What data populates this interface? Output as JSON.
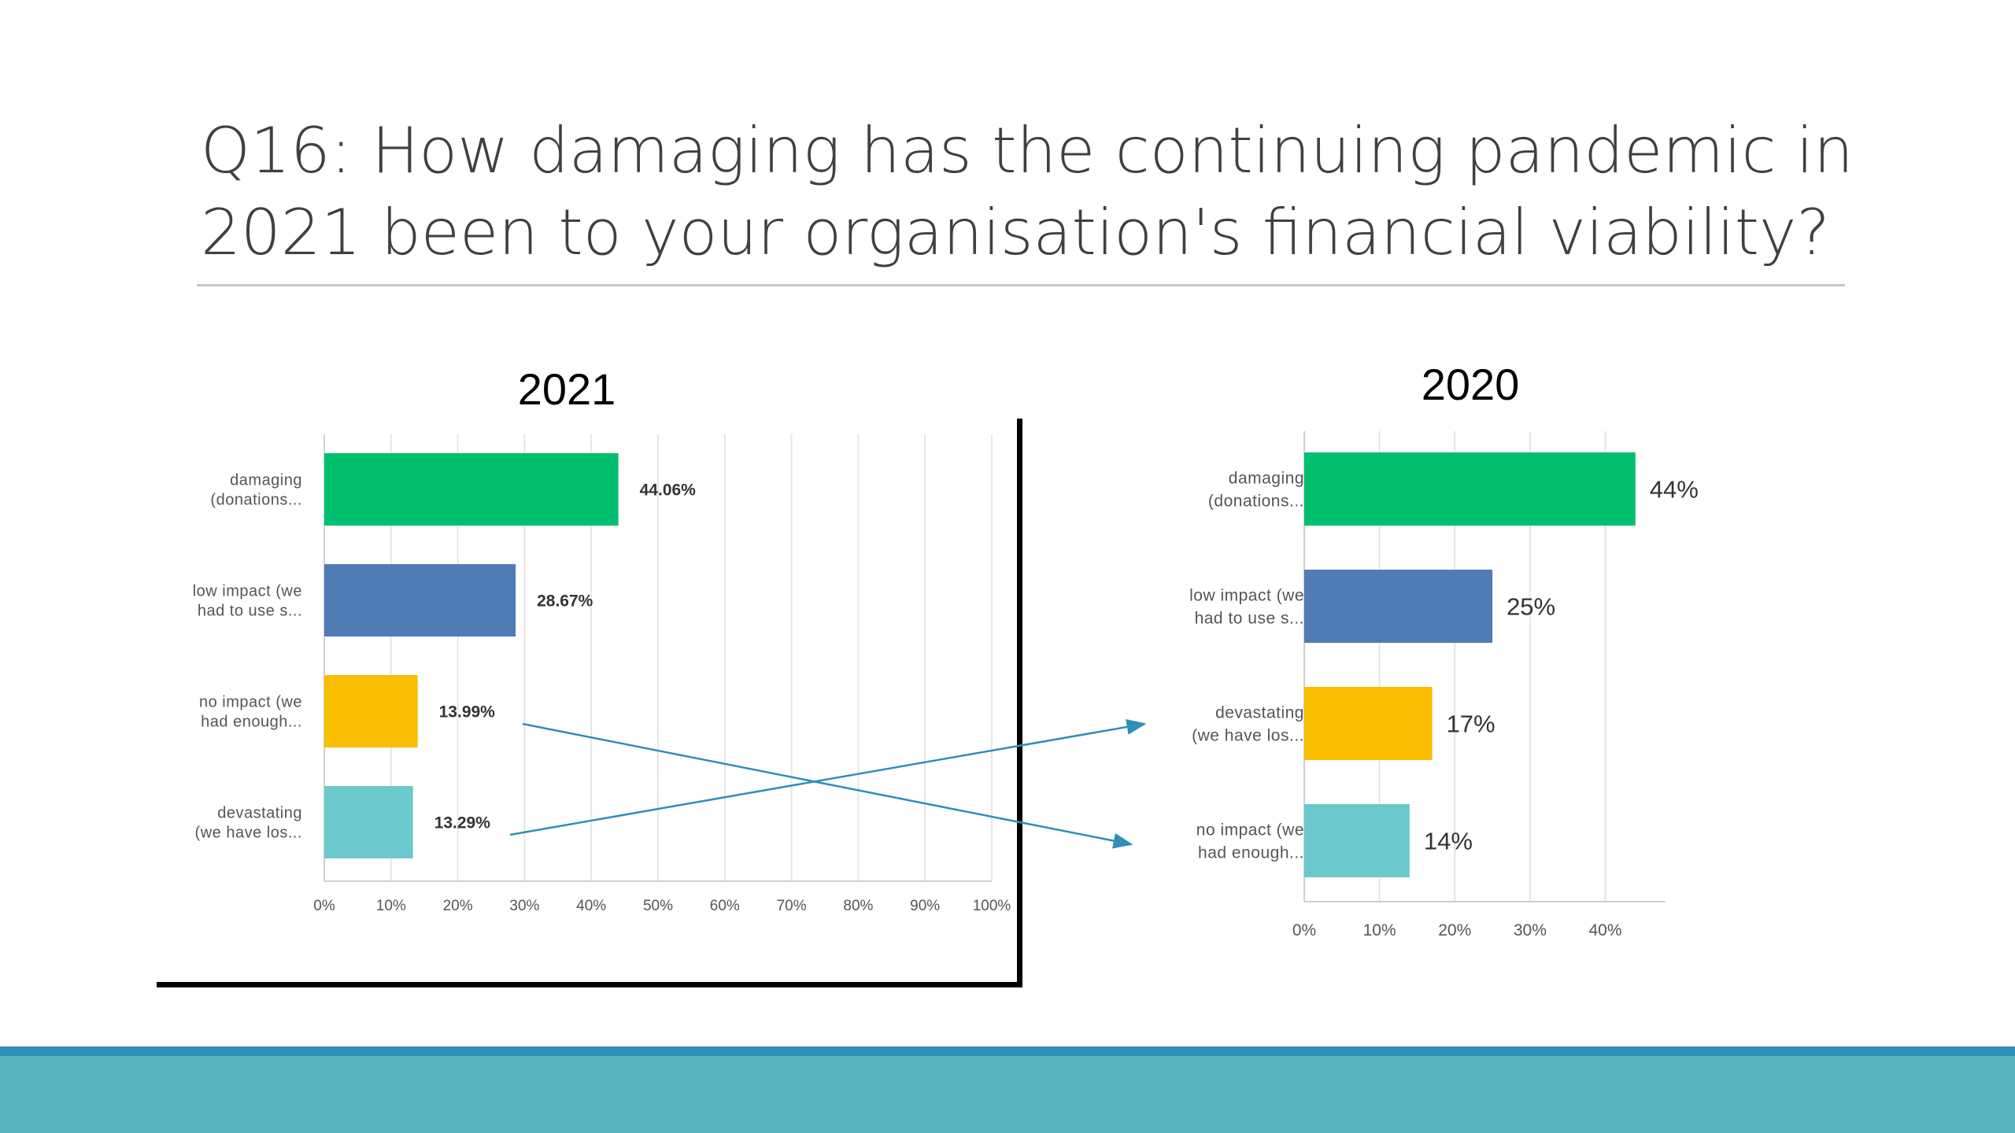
{
  "slide": {
    "title_line1": "Q16: How damaging has the continuing pandemic in",
    "title_line2": "2021 been to your organisation's financial viability?"
  },
  "colors": {
    "green": "#00bf6f",
    "blue": "#507cb6",
    "yellow": "#f9be00",
    "teal": "#6bc8cd",
    "arrow": "#2f8fb8",
    "footer": "#58b5c0"
  },
  "chart_data": [
    {
      "type": "bar",
      "orientation": "horizontal",
      "title": "2021",
      "categories": [
        [
          "damaging",
          "(donations..."
        ],
        [
          "low impact (we",
          "had to use s..."
        ],
        [
          "no impact (we",
          "had enough..."
        ],
        [
          "devastating",
          "(we have los..."
        ]
      ],
      "values": [
        44.06,
        28.67,
        13.99,
        13.29
      ],
      "data_labels": [
        "44.06%",
        "28.67%",
        "13.99%",
        "13.29%"
      ],
      "bar_colors": [
        "#00bf6f",
        "#507cb6",
        "#f9be00",
        "#6bc8cd"
      ],
      "xlim": [
        0,
        100
      ],
      "ticks": [
        "0%",
        "10%",
        "20%",
        "30%",
        "40%",
        "50%",
        "60%",
        "70%",
        "80%",
        "90%",
        "100%"
      ],
      "grid": true
    },
    {
      "type": "bar",
      "orientation": "horizontal",
      "title": "2020",
      "categories": [
        [
          "damaging",
          "(donations..."
        ],
        [
          "low impact (we",
          "had to use s..."
        ],
        [
          "devastating",
          "(we have los..."
        ],
        [
          "no impact (we",
          "had enough..."
        ]
      ],
      "values": [
        44,
        25,
        17,
        14
      ],
      "data_labels": [
        "44%",
        "25%",
        "17%",
        "14%"
      ],
      "bar_colors": [
        "#00bf6f",
        "#507cb6",
        "#f9be00",
        "#6bc8cd"
      ],
      "xlim": [
        0,
        48
      ],
      "ticks": [
        "0%",
        "10%",
        "20%",
        "30%",
        "40%"
      ],
      "grid": true
    }
  ],
  "arrows": [
    {
      "from": "no impact (we had enough...)",
      "to": "no impact (we had enough...)"
    },
    {
      "from": "devastating (we have los...)",
      "to": "devastating (we have los...)"
    }
  ]
}
